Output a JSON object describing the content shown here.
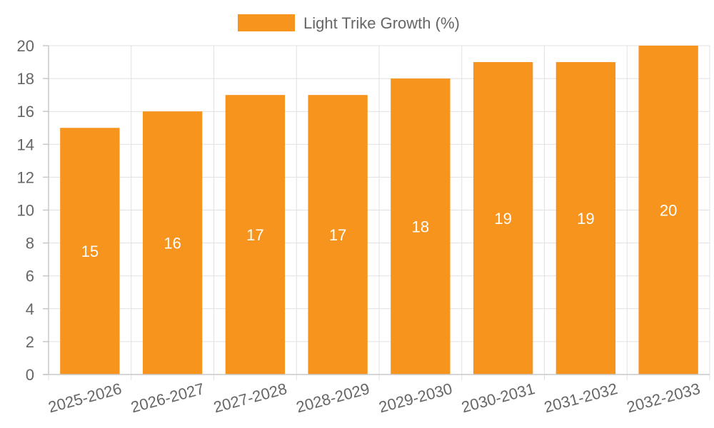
{
  "chart_data": {
    "type": "bar",
    "categories": [
      "2025-2026",
      "2026-2027",
      "2027-2028",
      "2028-2029",
      "2029-2030",
      "2030-2031",
      "2031-2032",
      "2032-2033"
    ],
    "series": [
      {
        "name": "Light Trike Growth (%)",
        "values": [
          15,
          16,
          17,
          17,
          18,
          19,
          19,
          20
        ],
        "color": "#f7941d"
      }
    ],
    "ylim": [
      0,
      20
    ],
    "yticks": [
      0,
      2,
      4,
      6,
      8,
      10,
      12,
      14,
      16,
      18,
      20
    ],
    "grid": true,
    "legend_position": "top-center",
    "data_labels": true
  }
}
